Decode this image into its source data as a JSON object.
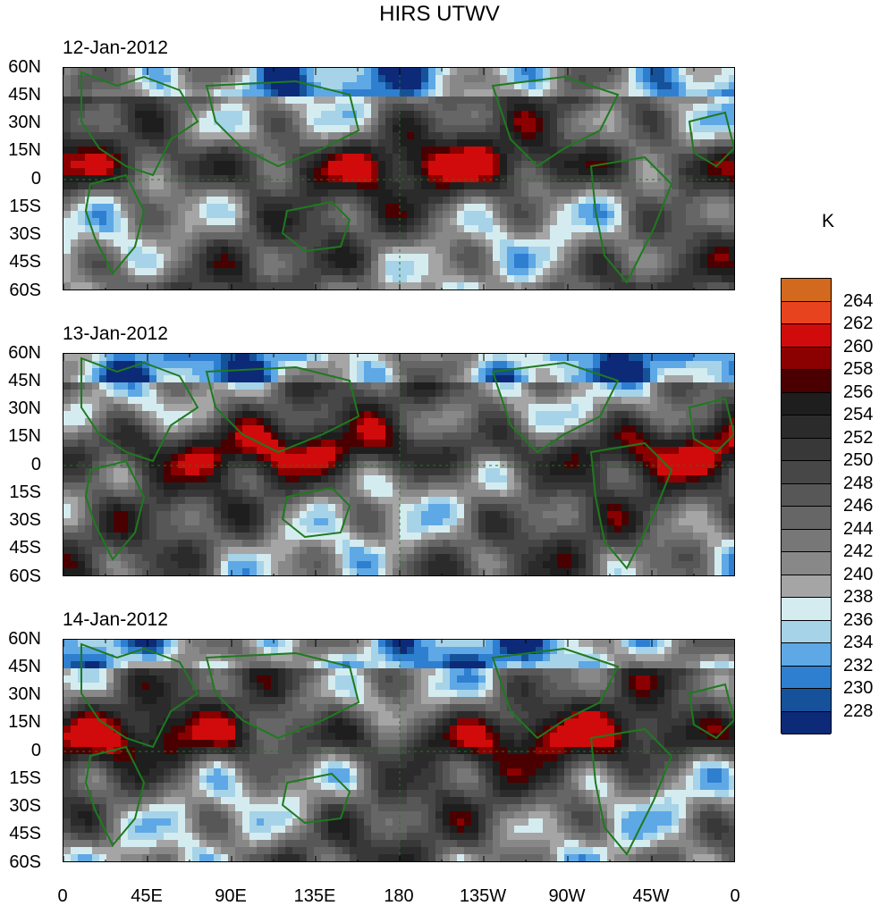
{
  "title": "HIRS UTWV",
  "colorbar": {
    "unit": "K",
    "levels": [
      "264",
      "262",
      "260",
      "258",
      "256",
      "254",
      "252",
      "250",
      "248",
      "246",
      "244",
      "242",
      "240",
      "238",
      "236",
      "234",
      "232",
      "230",
      "228"
    ],
    "colors": [
      "#d2691e",
      "#e8431f",
      "#d10b0b",
      "#8b0000",
      "#4a0000",
      "#1e1e1e",
      "#2b2b2b",
      "#383838",
      "#474747",
      "#575757",
      "#666666",
      "#777777",
      "#888888",
      "#a5a5a5",
      "#d4ecf0",
      "#a6d3e8",
      "#5ea8e6",
      "#2f7fd0",
      "#16529a",
      "#0d2a78"
    ]
  },
  "lat_labels": [
    "60N",
    "45N",
    "30N",
    "15N",
    "0",
    "15S",
    "30S",
    "45S",
    "60S"
  ],
  "lon_labels": [
    "0",
    "45E",
    "90E",
    "135E",
    "180",
    "135W",
    "90W",
    "45W",
    "0"
  ],
  "panels": [
    {
      "date": "12-Jan-2012"
    },
    {
      "date": "13-Jan-2012"
    },
    {
      "date": "14-Jan-2012"
    }
  ]
}
